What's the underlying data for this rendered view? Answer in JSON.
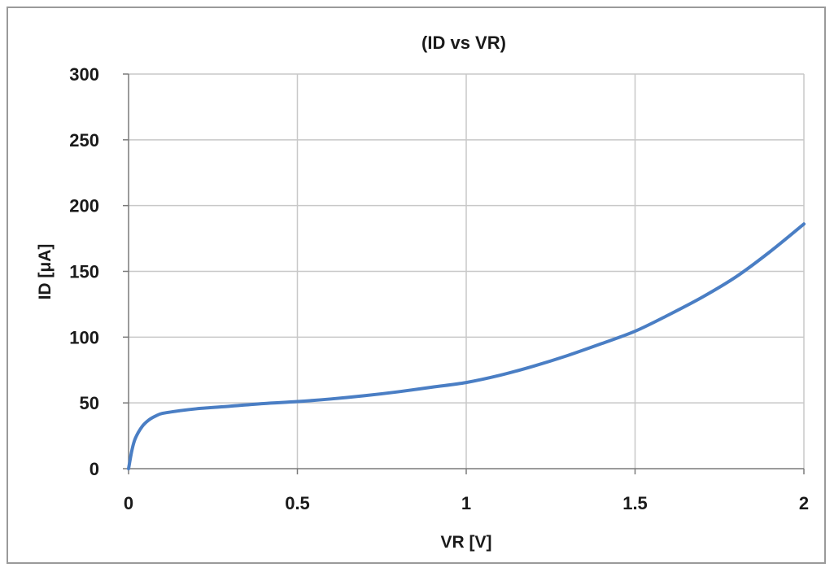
{
  "chart_data": {
    "type": "line",
    "title": "(ID vs VR)",
    "xlabel": "VR [V]",
    "ylabel": "ID [μA]",
    "xlim": [
      0,
      2
    ],
    "ylim": [
      0,
      300
    ],
    "x_ticks": [
      "0",
      "0.5",
      "1",
      "1.5",
      "2"
    ],
    "y_ticks": [
      "0",
      "50",
      "100",
      "150",
      "200",
      "250",
      "300"
    ],
    "grid": true,
    "legend": "none",
    "line_color": "#4a7ec4",
    "grid_color": "#c8c8c8",
    "series": [
      {
        "x": [
          0,
          0.01,
          0.02,
          0.04,
          0.06,
          0.08,
          0.1,
          0.15,
          0.2,
          0.3,
          0.4,
          0.5,
          0.6,
          0.7,
          0.8,
          0.9,
          1.0,
          1.1,
          1.2,
          1.3,
          1.4,
          1.5,
          1.6,
          1.7,
          1.8,
          1.9,
          2.0
        ],
        "y": [
          0,
          14,
          23,
          32,
          37,
          40,
          42,
          44,
          45.5,
          47.5,
          49.5,
          51,
          53,
          55.5,
          58.5,
          62,
          65.5,
          71,
          78,
          86,
          95,
          104.5,
          117,
          130.5,
          146,
          165,
          186
        ]
      }
    ]
  }
}
